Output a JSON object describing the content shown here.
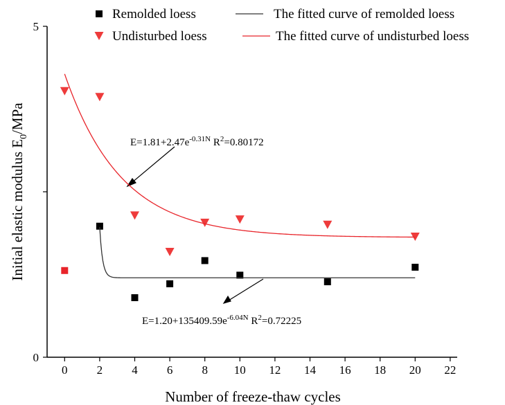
{
  "chart_data": {
    "type": "scatter",
    "x_label": "Number of freeze-thaw cycles",
    "y_label": [
      "Initial elastic modulus E",
      "0",
      "/MPa"
    ],
    "xlim": [
      -1,
      22.4
    ],
    "ylim": [
      0,
      5
    ],
    "xticks": [
      0,
      2,
      4,
      6,
      8,
      10,
      12,
      14,
      16,
      18,
      20,
      22
    ],
    "yticks": [
      0,
      5
    ],
    "yminorticks": [
      2.5
    ],
    "series": [
      {
        "name": "Remolded loess",
        "kind": "scatter",
        "marker": "square",
        "color": "#000000",
        "point_colors": [
          "#e8242a",
          "#000000",
          "#000000",
          "#000000",
          "#000000",
          "#000000",
          "#000000",
          "#000000"
        ],
        "x": [
          0,
          2,
          4,
          6,
          8,
          10,
          15,
          20
        ],
        "values": [
          1.31,
          1.98,
          0.9,
          1.11,
          1.46,
          1.24,
          1.14,
          1.36
        ]
      },
      {
        "name": "Undisturbed loess",
        "kind": "scatter",
        "marker": "triangle",
        "color": "#ee3b3b",
        "x": [
          0,
          2,
          4,
          6,
          8,
          10,
          15,
          20
        ],
        "values": [
          4.02,
          3.93,
          2.14,
          1.59,
          2.03,
          2.08,
          2.0,
          1.82
        ]
      },
      {
        "name": "The fitted curve of remolded loess",
        "kind": "fit",
        "color": "#333333",
        "a": 1.2,
        "b": 135409.59,
        "c": -6.04,
        "xrange": [
          2,
          20
        ]
      },
      {
        "name": "The fitted curve of undisturbed loess",
        "kind": "fit",
        "color": "#e8242a",
        "a": 1.81,
        "b": 2.47,
        "c": -0.31,
        "xrange": [
          0,
          20
        ]
      }
    ],
    "annotations": [
      [
        "E=1.81+2.47e",
        "-0.31N",
        "   R",
        "2",
        "=0.80172"
      ],
      [
        "E=1.20+135409.59e",
        "-6.04N",
        "   R",
        "2",
        "=0.72225"
      ]
    ]
  }
}
